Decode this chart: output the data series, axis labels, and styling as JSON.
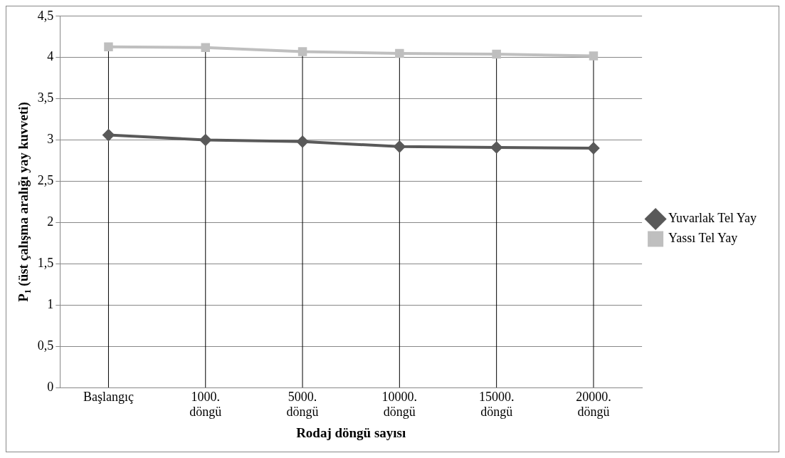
{
  "chart_data": {
    "type": "line",
    "xlabel": "Rodaj döngü sayısı",
    "ylabel": "P₁ (üst çalışma aralığı yay kuvveti)",
    "categories": [
      "Başlangıç",
      "1000. döngü",
      "5000. döngü",
      "10000. döngü",
      "15000. döngü",
      "20000. döngü"
    ],
    "series": [
      {
        "name": "Yuvarlak Tel Yay",
        "color": "#595959",
        "marker": "diamond",
        "values": [
          3.06,
          3.0,
          2.98,
          2.92,
          2.91,
          2.9
        ]
      },
      {
        "name": "Yassı Tel Yay",
        "color": "#bfbfbf",
        "marker": "square",
        "values": [
          4.13,
          4.12,
          4.07,
          4.05,
          4.04,
          4.02
        ]
      }
    ],
    "ylim": [
      0,
      4.5
    ],
    "yticks": [
      0,
      {
        "value": 0.5,
        "label": "0,5"
      },
      1,
      {
        "value": 1.5,
        "label": "1,5"
      },
      2,
      {
        "value": 2.5,
        "label": "2,5"
      },
      3,
      {
        "value": 3.5,
        "label": "3,5"
      },
      4,
      {
        "value": 4.5,
        "label": "4,5"
      }
    ],
    "grid": true,
    "legend": "right",
    "line_style": "solid"
  }
}
